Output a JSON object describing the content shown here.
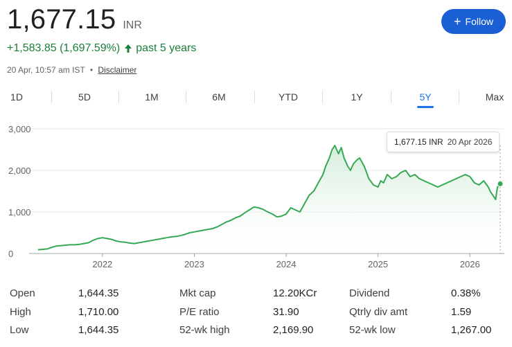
{
  "quote": {
    "price": "1,677.15",
    "currency": "INR",
    "change": "+1,583.85 (1,697.59%)",
    "period": "past 5 years",
    "timestamp": "20 Apr, 10:57 am IST",
    "separator": "•",
    "disclaimer": "Disclaimer",
    "follow_label": "Follow",
    "accent_color": "#1a5fd4",
    "positive_color": "#188038"
  },
  "tabs": [
    {
      "label": "1D"
    },
    {
      "label": "5D"
    },
    {
      "label": "1M"
    },
    {
      "label": "6M"
    },
    {
      "label": "YTD"
    },
    {
      "label": "1Y"
    },
    {
      "label": "5Y",
      "active": true
    },
    {
      "label": "Max"
    }
  ],
  "tooltip": {
    "price": "1,677.15 INR",
    "date": "20 Apr 2026"
  },
  "chart_data": {
    "type": "area",
    "ylim": [
      0,
      3000
    ],
    "y_ticks": [
      "3,000",
      "2,000",
      "1,000",
      "0"
    ],
    "y_tick_values": [
      3000,
      2000,
      1000,
      0
    ],
    "x_ticks": [
      "2022",
      "2023",
      "2024",
      "2025",
      "2026"
    ],
    "x_tick_values": [
      2022,
      2023,
      2024,
      2025,
      2026
    ],
    "x_range": [
      2021.3,
      2026.33
    ],
    "line_color": "#34a853",
    "fill_color": "#e6f4ea",
    "series": [
      {
        "x": [
          2021.3,
          2021.35,
          2021.4,
          2021.45,
          2021.5,
          2021.55,
          2021.6,
          2021.65,
          2021.7,
          2021.75,
          2021.8,
          2021.85,
          2021.9,
          2021.95,
          2022.0,
          2022.05,
          2022.1,
          2022.15,
          2022.2,
          2022.25,
          2022.3,
          2022.35,
          2022.4,
          2022.45,
          2022.5,
          2022.55,
          2022.6,
          2022.65,
          2022.7,
          2022.75,
          2022.8,
          2022.85,
          2022.9,
          2022.95,
          2023.0,
          2023.05,
          2023.1,
          2023.15,
          2023.2,
          2023.25,
          2023.3,
          2023.35,
          2023.4,
          2023.45,
          2023.5,
          2023.55,
          2023.6,
          2023.65,
          2023.7,
          2023.75,
          2023.8,
          2023.85,
          2023.9,
          2023.95,
          2024.0,
          2024.05,
          2024.1,
          2024.15,
          2024.2,
          2024.25,
          2024.3,
          2024.35,
          2024.4,
          2024.43,
          2024.47,
          2024.5,
          2024.53,
          2024.57,
          2024.6,
          2024.63,
          2024.67,
          2024.7,
          2024.73,
          2024.77,
          2024.8,
          2024.85,
          2024.9,
          2024.95,
          2025.0,
          2025.03,
          2025.06,
          2025.1,
          2025.15,
          2025.2,
          2025.25,
          2025.3,
          2025.35,
          2025.4,
          2025.45,
          2025.5,
          2025.55,
          2025.6,
          2025.65,
          2025.7,
          2025.75,
          2025.8,
          2025.85,
          2025.9,
          2025.95,
          2026.0,
          2026.05,
          2026.1,
          2026.15,
          2026.2,
          2026.22,
          2026.25,
          2026.28,
          2026.3,
          2026.33
        ],
        "y": [
          90,
          100,
          110,
          150,
          180,
          190,
          200,
          210,
          210,
          220,
          240,
          260,
          320,
          360,
          380,
          360,
          340,
          300,
          280,
          270,
          250,
          240,
          260,
          280,
          300,
          320,
          340,
          360,
          380,
          400,
          410,
          430,
          460,
          500,
          520,
          540,
          560,
          580,
          600,
          640,
          700,
          760,
          800,
          860,
          900,
          980,
          1050,
          1120,
          1100,
          1060,
          1000,
          950,
          880,
          900,
          950,
          1100,
          1050,
          1000,
          1200,
          1400,
          1500,
          1700,
          1900,
          2100,
          2300,
          2500,
          2600,
          2400,
          2550,
          2300,
          2100,
          2000,
          2150,
          2250,
          2300,
          2100,
          1800,
          1650,
          1600,
          1750,
          1700,
          1900,
          1800,
          1850,
          1950,
          2000,
          1850,
          1900,
          1800,
          1750,
          1700,
          1650,
          1600,
          1650,
          1700,
          1750,
          1800,
          1850,
          1900,
          1850,
          1700,
          1650,
          1750,
          1600,
          1500,
          1400,
          1300,
          1600,
          1677
        ]
      }
    ]
  },
  "stats": {
    "col1": [
      {
        "label": "Open",
        "value": "1,644.35"
      },
      {
        "label": "High",
        "value": "1,710.00"
      },
      {
        "label": "Low",
        "value": "1,644.35"
      }
    ],
    "col2": [
      {
        "label": "Mkt cap",
        "value": "12.20KCr"
      },
      {
        "label": "P/E ratio",
        "value": "31.90"
      },
      {
        "label": "52-wk high",
        "value": "2,169.90"
      }
    ],
    "col3": [
      {
        "label": "Dividend",
        "value": "0.38%"
      },
      {
        "label": "Qtrly div amt",
        "value": "1.59"
      },
      {
        "label": "52-wk low",
        "value": "1,267.00"
      }
    ]
  }
}
